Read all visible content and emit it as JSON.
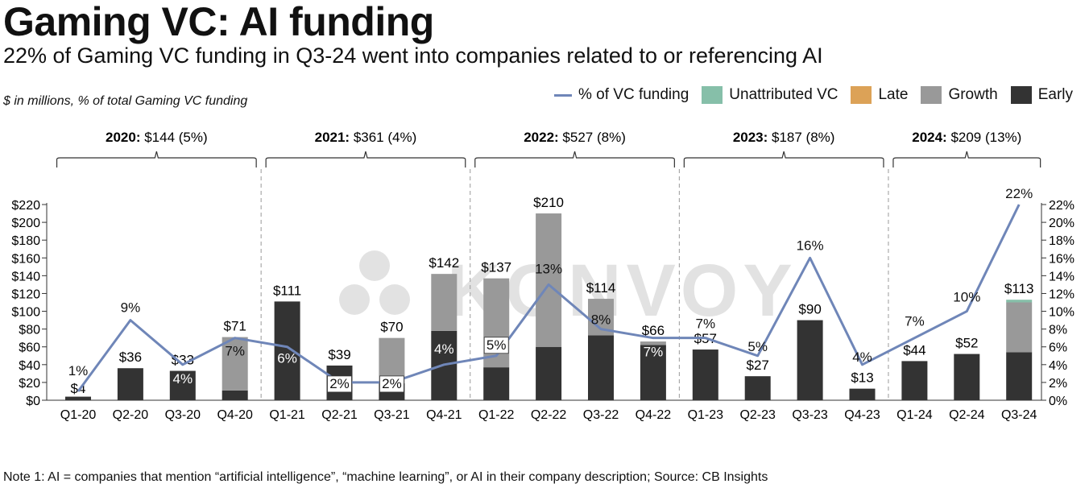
{
  "title": "Gaming VC: AI funding",
  "subtitle": "22% of Gaming VC funding in Q3-24 went into companies related to or referencing AI",
  "units_note": "$ in millions, % of total Gaming VC funding",
  "footnote": "Note 1: AI = companies that mention “artificial intelligence”, “machine learning”, or AI in their company description; Source: CB Insights",
  "watermark": "KONVOY",
  "legend": [
    {
      "label": "% of VC funding",
      "type": "line",
      "color": "#6f86b8"
    },
    {
      "label": "Unattributed VC",
      "type": "box",
      "color": "#86bfa9"
    },
    {
      "label": "Late",
      "type": "box",
      "color": "#dca257"
    },
    {
      "label": "Growth",
      "type": "box",
      "color": "#999999"
    },
    {
      "label": "Early",
      "type": "box",
      "color": "#333333"
    }
  ],
  "year_groups": [
    {
      "year": "2020:",
      "summary": "$144 (5%)"
    },
    {
      "year": "2021:",
      "summary": "$361 (4%)"
    },
    {
      "year": "2022:",
      "summary": "$527 (8%)"
    },
    {
      "year": "2023:",
      "summary": "$187 (8%)"
    },
    {
      "year": "2024:",
      "summary": "$209 (13%)"
    }
  ],
  "chart_data": {
    "type": "bar",
    "stacked": true,
    "categories": [
      "Q1-20",
      "Q2-20",
      "Q3-20",
      "Q4-20",
      "Q1-21",
      "Q2-21",
      "Q3-21",
      "Q4-21",
      "Q1-22",
      "Q2-22",
      "Q3-22",
      "Q4-22",
      "Q1-23",
      "Q2-23",
      "Q3-23",
      "Q4-23",
      "Q1-24",
      "Q2-24",
      "Q3-24"
    ],
    "series": [
      {
        "name": "Early",
        "color": "#333333",
        "values": [
          4,
          36,
          33,
          11,
          111,
          39,
          19,
          78,
          37,
          60,
          73,
          62,
          57,
          27,
          90,
          13,
          44,
          52,
          54
        ]
      },
      {
        "name": "Growth",
        "color": "#999999",
        "values": [
          0,
          0,
          0,
          60,
          0,
          0,
          51,
          64,
          100,
          150,
          41,
          4,
          0,
          0,
          0,
          0,
          0,
          0,
          56
        ]
      },
      {
        "name": "Late",
        "color": "#dca257",
        "values": [
          0,
          0,
          0,
          0,
          0,
          0,
          0,
          0,
          0,
          0,
          0,
          0,
          0,
          0,
          0,
          0,
          0,
          0,
          0
        ]
      },
      {
        "name": "Unattributed VC",
        "color": "#86bfa9",
        "values": [
          0,
          0,
          0,
          0,
          0,
          0,
          0,
          0,
          0,
          0,
          0,
          0,
          0,
          0,
          0,
          0,
          0,
          0,
          3
        ]
      }
    ],
    "totals": [
      "$4",
      "$36",
      "$33",
      "$71",
      "$111",
      "$39",
      "$70",
      "$142",
      "$137",
      "$210",
      "$114",
      "$66",
      "$57",
      "$27",
      "$90",
      "$13",
      "$44",
      "$52",
      "$113"
    ],
    "line": {
      "name": "% of VC funding",
      "axis": "right",
      "color": "#6f86b8",
      "values": [
        1,
        9,
        4,
        7,
        6,
        2,
        2,
        4,
        5,
        13,
        8,
        7,
        7,
        5,
        16,
        4,
        7,
        10,
        22
      ],
      "labels": [
        "1%",
        "9%",
        "4%",
        "7%",
        "6%",
        "2%",
        "2%",
        "4%",
        "5%",
        "13%",
        "8%",
        "7%",
        "7%",
        "5%",
        "16%",
        "4%",
        "7%",
        "10%",
        "22%"
      ]
    },
    "y_left": {
      "range": [
        0,
        220
      ],
      "ticks": [
        "$0",
        "$20",
        "$40",
        "$60",
        "$80",
        "$100",
        "$120",
        "$140",
        "$160",
        "$180",
        "$200",
        "$220"
      ]
    },
    "y_right": {
      "range": [
        0,
        22
      ],
      "ticks": [
        "0%",
        "2%",
        "4%",
        "6%",
        "8%",
        "10%",
        "12%",
        "14%",
        "16%",
        "18%",
        "20%",
        "22%"
      ]
    },
    "grid": false,
    "legend_position": "top-right"
  }
}
